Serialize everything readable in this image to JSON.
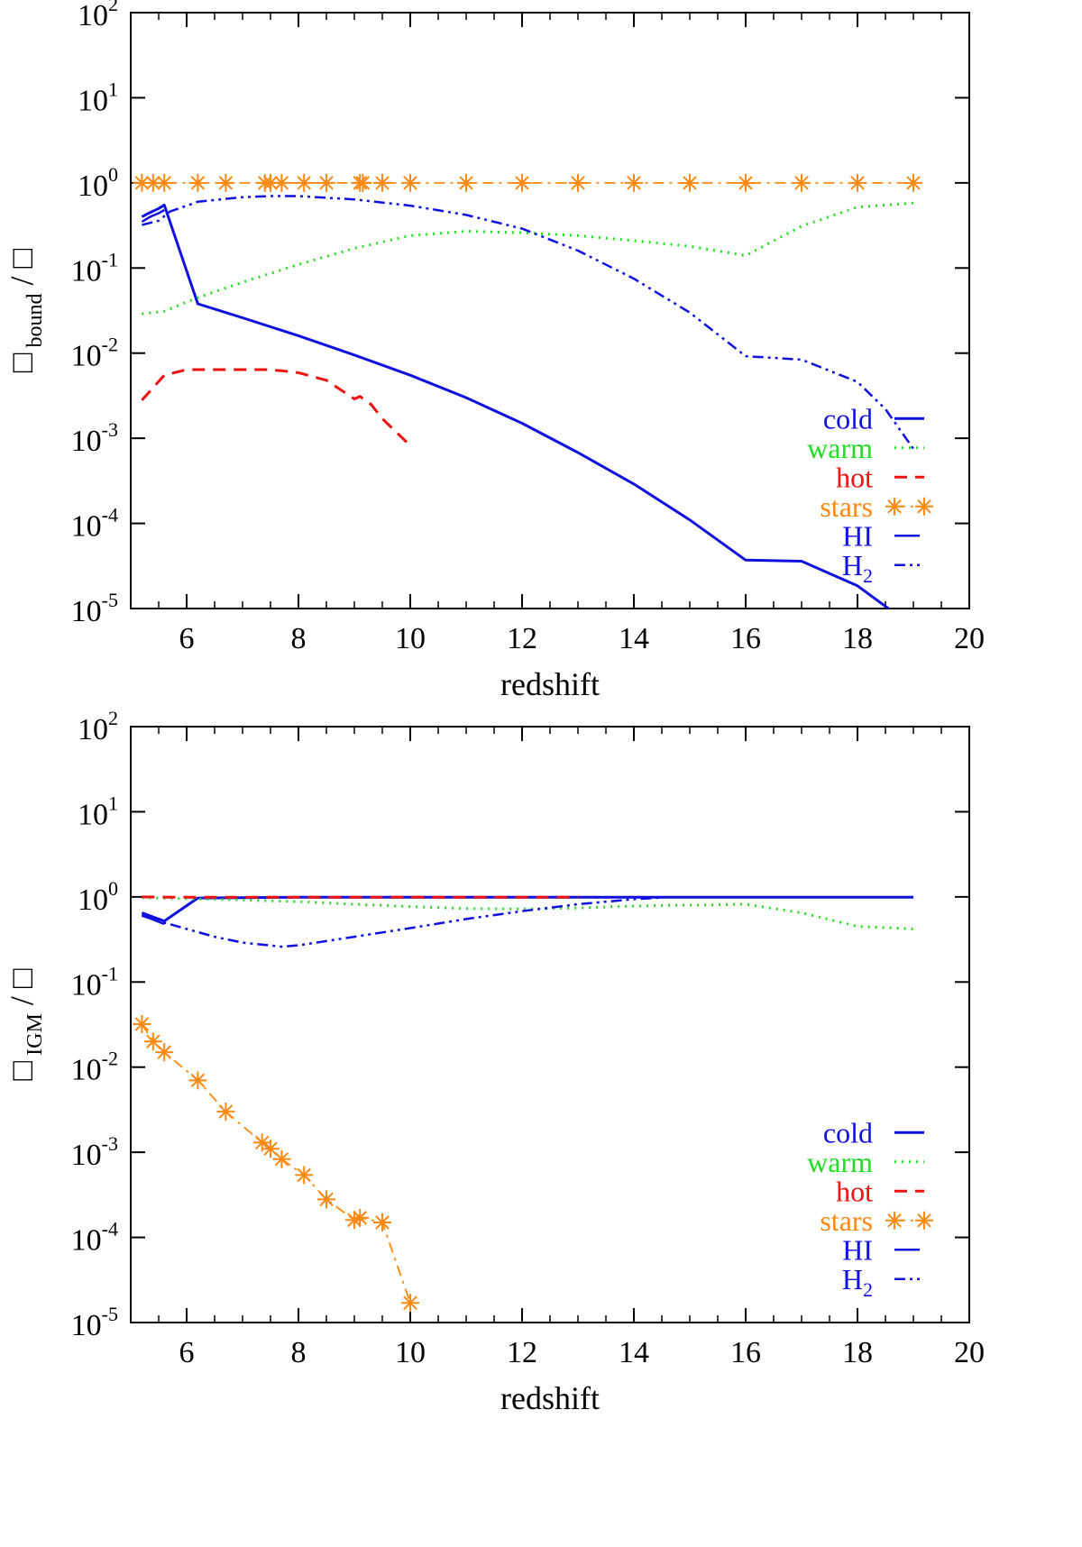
{
  "chart_data": [
    {
      "type": "line",
      "panel": "top",
      "title": "",
      "xlabel": "redshift",
      "ylabel": {
        "symbol": "□",
        "subscript": "bound",
        "denominator": "/ □"
      },
      "xlim": [
        5,
        20
      ],
      "ylim": [
        1e-05,
        100
      ],
      "yscale": "log",
      "xticks": [
        6,
        8,
        10,
        12,
        14,
        16,
        18,
        20
      ],
      "xtick_labels": [
        "6",
        "8",
        "10",
        "12",
        "14",
        "16",
        "18",
        "20"
      ],
      "yticks": [
        {
          "value": 100,
          "base": "10",
          "exp": "2"
        },
        {
          "value": 10,
          "base": "10",
          "exp": "1"
        },
        {
          "value": 1,
          "base": "10",
          "exp": "0"
        },
        {
          "value": 0.1,
          "base": "10",
          "exp": "-1"
        },
        {
          "value": 0.01,
          "base": "10",
          "exp": "-2"
        },
        {
          "value": 0.001,
          "base": "10",
          "exp": "-3"
        },
        {
          "value": 0.0001,
          "base": "10",
          "exp": "-4"
        },
        {
          "value": 1e-05,
          "base": "10",
          "exp": "-5"
        }
      ],
      "grid": false,
      "legend_position": "bottom-right",
      "series": [
        {
          "name": "cold",
          "color": "#1010e0",
          "style": "solid",
          "x": [
            5.2,
            5.35,
            5.5,
            5.6,
            6.2,
            7,
            8,
            9,
            10,
            11,
            12,
            13,
            14,
            15,
            16,
            17,
            18,
            18.6
          ],
          "y": [
            0.4,
            0.45,
            0.5,
            0.55,
            0.038,
            0.026,
            0.016,
            0.0095,
            0.0055,
            0.003,
            0.0015,
            0.00068,
            0.00029,
            0.00011,
            3.7e-05,
            3.6e-05,
            1.85e-05,
            9.5e-06
          ]
        },
        {
          "name": "warm",
          "color": "#22dd22",
          "style": "dotted",
          "x": [
            5.2,
            5.6,
            6.2,
            7,
            8,
            9,
            10,
            11,
            12,
            13,
            14,
            15,
            16,
            17,
            18,
            19
          ],
          "y": [
            0.029,
            0.031,
            0.045,
            0.068,
            0.11,
            0.17,
            0.24,
            0.27,
            0.26,
            0.24,
            0.21,
            0.18,
            0.14,
            0.31,
            0.52,
            0.58
          ]
        },
        {
          "name": "hot",
          "color": "#ee1111",
          "style": "dashed",
          "x": [
            5.2,
            5.6,
            6,
            7,
            7.4,
            7.7,
            8,
            8.5,
            9,
            9.1,
            9.3,
            9.5,
            10
          ],
          "y": [
            0.0028,
            0.0055,
            0.0064,
            0.0064,
            0.0064,
            0.0062,
            0.0059,
            0.0048,
            0.0029,
            0.0031,
            0.0025,
            0.0017,
            0.00082
          ]
        },
        {
          "name": "stars",
          "color": "#ff8811",
          "style": "dash-dot",
          "marker": "asterisk",
          "x": [
            5.2,
            5.4,
            5.6,
            6.2,
            6.7,
            7.4,
            7.5,
            7.7,
            8.1,
            8.5,
            9.1,
            9.15,
            9.5,
            10,
            11,
            12,
            13,
            14,
            15,
            16,
            17,
            18,
            19
          ],
          "y": [
            1,
            1,
            1,
            1,
            1,
            1,
            1,
            1,
            1,
            1,
            1,
            1,
            1,
            1,
            1,
            1,
            1,
            1,
            1,
            1,
            1,
            1,
            1
          ]
        },
        {
          "name": "HI",
          "color": "#1010e0",
          "style": "long-dash",
          "x": [
            5.2,
            5.35,
            5.5,
            5.6
          ],
          "y": [
            0.35,
            0.4,
            0.44,
            0.48
          ]
        },
        {
          "name": "H2",
          "color": "#1010e0",
          "style": "dash-dot-dot",
          "legend_sub": "2",
          "x": [
            5.2,
            5.5,
            5.7,
            6.2,
            7,
            7.5,
            8,
            9,
            10,
            11,
            12,
            13,
            14,
            15,
            16,
            17,
            18,
            18.5,
            19
          ],
          "y": [
            0.32,
            0.36,
            0.46,
            0.6,
            0.68,
            0.7,
            0.7,
            0.64,
            0.54,
            0.42,
            0.29,
            0.16,
            0.075,
            0.03,
            0.0092,
            0.0084,
            0.0046,
            0.0022,
            0.00075
          ]
        }
      ]
    },
    {
      "type": "line",
      "panel": "bottom",
      "title": "",
      "xlabel": "redshift",
      "ylabel": {
        "symbol": "□",
        "subscript": "IGM",
        "denominator": "/ □"
      },
      "xlim": [
        5,
        20
      ],
      "ylim": [
        1e-05,
        100
      ],
      "yscale": "log",
      "xticks": [
        6,
        8,
        10,
        12,
        14,
        16,
        18,
        20
      ],
      "xtick_labels": [
        "6",
        "8",
        "10",
        "12",
        "14",
        "16",
        "18",
        "20"
      ],
      "yticks": [
        {
          "value": 100,
          "base": "10",
          "exp": "2"
        },
        {
          "value": 10,
          "base": "10",
          "exp": "1"
        },
        {
          "value": 1,
          "base": "10",
          "exp": "0"
        },
        {
          "value": 0.1,
          "base": "10",
          "exp": "-1"
        },
        {
          "value": 0.01,
          "base": "10",
          "exp": "-2"
        },
        {
          "value": 0.001,
          "base": "10",
          "exp": "-3"
        },
        {
          "value": 0.0001,
          "base": "10",
          "exp": "-4"
        },
        {
          "value": 1e-05,
          "base": "10",
          "exp": "-5"
        }
      ],
      "grid": false,
      "legend_position": "bottom-right",
      "series": [
        {
          "name": "cold",
          "color": "#1010e0",
          "style": "solid",
          "x": [
            5.2,
            5.4,
            5.6,
            6.2,
            8,
            10,
            12,
            14,
            16,
            18,
            19
          ],
          "y": [
            0.65,
            0.58,
            0.52,
            0.97,
            0.99,
            0.99,
            0.99,
            0.99,
            0.99,
            0.99,
            0.99
          ]
        },
        {
          "name": "warm",
          "color": "#22dd22",
          "style": "dotted",
          "x": [
            5.2,
            6,
            7,
            8,
            9,
            10,
            11,
            12,
            13,
            14,
            15,
            16,
            17,
            18,
            19
          ],
          "y": [
            0.98,
            0.95,
            0.92,
            0.88,
            0.82,
            0.77,
            0.73,
            0.72,
            0.74,
            0.78,
            0.8,
            0.82,
            0.65,
            0.45,
            0.42
          ]
        },
        {
          "name": "hot",
          "color": "#ee1111",
          "style": "dashed",
          "x": [
            5.2,
            6,
            8,
            10,
            12,
            13
          ],
          "y": [
            1,
            0.99,
            0.99,
            0.99,
            0.99,
            0.99
          ]
        },
        {
          "name": "stars",
          "color": "#ff8811",
          "style": "dash-dot",
          "marker": "asterisk",
          "x": [
            5.2,
            5.4,
            5.6,
            6.2,
            6.7,
            7.35,
            7.5,
            7.7,
            8.1,
            8.5,
            9.0,
            9.1,
            9.5,
            10
          ],
          "y": [
            0.032,
            0.02,
            0.015,
            0.007,
            0.003,
            0.0013,
            0.0011,
            0.00083,
            0.00054,
            0.00028,
            0.00016,
            0.00017,
            0.00015,
            1.7e-05
          ]
        },
        {
          "name": "HI",
          "color": "#1010e0",
          "style": "long-dash",
          "x": [
            5.2,
            5.4,
            5.6
          ],
          "y": [
            0.62,
            0.54,
            0.48
          ]
        },
        {
          "name": "H2",
          "color": "#1010e0",
          "style": "dash-dot-dot",
          "legend_sub": "2",
          "x": [
            5.2,
            5.5,
            6,
            6.5,
            7,
            7.7,
            8,
            9,
            10,
            11,
            12,
            13,
            14,
            14.5
          ],
          "y": [
            0.6,
            0.52,
            0.42,
            0.34,
            0.29,
            0.26,
            0.27,
            0.34,
            0.43,
            0.55,
            0.68,
            0.82,
            0.94,
            0.98
          ]
        }
      ]
    }
  ]
}
